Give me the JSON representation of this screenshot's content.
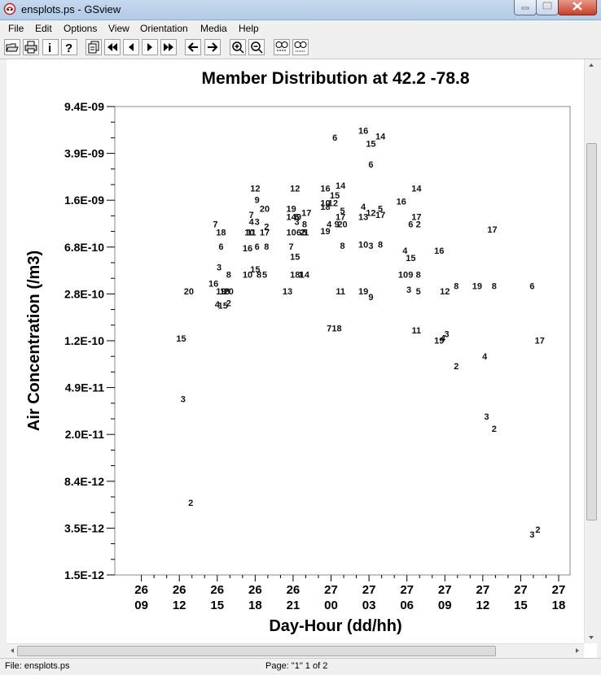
{
  "window": {
    "title": "ensplots.ps - GSview"
  },
  "menu": [
    "File",
    "Edit",
    "Options",
    "View",
    "Orientation",
    "Media",
    "Help"
  ],
  "toolbar_icons": [
    "open-icon",
    "print-icon",
    "info-icon",
    "help-icon",
    "page-select-icon",
    "first-page-icon",
    "prev-page-icon",
    "next-page-icon",
    "last-page-icon",
    "back-icon",
    "forward-icon",
    "zoom-in-icon",
    "zoom-out-icon",
    "magnify-small-icon",
    "magnify-large-icon"
  ],
  "status": {
    "file": "File: ensplots.ps",
    "page": "Page: \"1\"  1 of 2"
  },
  "chart_data": {
    "type": "scatter",
    "title": "Member Distribution at  42.2  -78.8",
    "xlabel": "Day-Hour (dd/hh)",
    "ylabel": "Air Concentration (/m3)",
    "yscale": "log",
    "ylim": [
      1.5e-12,
      9.4e-09
    ],
    "y_tick_labels": [
      "9.4E-09",
      "3.9E-09",
      "1.6E-09",
      "6.8E-10",
      "2.8E-10",
      "1.2E-10",
      "4.9E-11",
      "2.0E-11",
      "8.4E-12",
      "3.5E-12",
      "1.5E-12"
    ],
    "x_tick_labels": [
      [
        "26",
        "09"
      ],
      [
        "26",
        "12"
      ],
      [
        "26",
        "15"
      ],
      [
        "26",
        "18"
      ],
      [
        "26",
        "21"
      ],
      [
        "27",
        "00"
      ],
      [
        "27",
        "03"
      ],
      [
        "27",
        "06"
      ],
      [
        "27",
        "09"
      ],
      [
        "27",
        "12"
      ],
      [
        "27",
        "15"
      ],
      [
        "27",
        "18"
      ]
    ],
    "xlim": [
      -0.7,
      11.3
    ],
    "points": [
      {
        "x": 1.05,
        "y": 1.24e-10,
        "label": "15"
      },
      {
        "x": 1.1,
        "y": 4e-11,
        "label": "3"
      },
      {
        "x": 1.3,
        "y": 5.8e-12,
        "label": "2"
      },
      {
        "x": 1.25,
        "y": 3e-10,
        "label": "20"
      },
      {
        "x": 1.9,
        "y": 3.45e-10,
        "label": "16"
      },
      {
        "x": 2.1,
        "y": 3e-10,
        "label": "19"
      },
      {
        "x": 2.3,
        "y": 3e-10,
        "label": "20"
      },
      {
        "x": 2.2,
        "y": 3e-10,
        "label": "18"
      },
      {
        "x": 2.0,
        "y": 2.35e-10,
        "label": "4"
      },
      {
        "x": 2.15,
        "y": 2.3e-10,
        "label": "15"
      },
      {
        "x": 2.3,
        "y": 2.4e-10,
        "label": "2"
      },
      {
        "x": 2.05,
        "y": 4.7e-10,
        "label": "3"
      },
      {
        "x": 2.3,
        "y": 4.1e-10,
        "label": "8"
      },
      {
        "x": 2.1,
        "y": 6.9e-10,
        "label": "6"
      },
      {
        "x": 1.95,
        "y": 1.05e-09,
        "label": "7"
      },
      {
        "x": 2.1,
        "y": 9e-10,
        "label": "18"
      },
      {
        "x": 3.0,
        "y": 2.05e-09,
        "label": "12"
      },
      {
        "x": 3.05,
        "y": 1.65e-09,
        "label": "9"
      },
      {
        "x": 3.25,
        "y": 1.4e-09,
        "label": "20"
      },
      {
        "x": 2.9,
        "y": 1.25e-09,
        "label": "7"
      },
      {
        "x": 2.9,
        "y": 1.1e-09,
        "label": "4"
      },
      {
        "x": 3.05,
        "y": 1.1e-09,
        "label": "3"
      },
      {
        "x": 3.3,
        "y": 1e-09,
        "label": "2"
      },
      {
        "x": 2.85,
        "y": 9e-10,
        "label": "10"
      },
      {
        "x": 2.9,
        "y": 9e-10,
        "label": "11"
      },
      {
        "x": 3.25,
        "y": 9e-10,
        "label": "17"
      },
      {
        "x": 2.8,
        "y": 6.7e-10,
        "label": "16"
      },
      {
        "x": 3.05,
        "y": 6.9e-10,
        "label": "6"
      },
      {
        "x": 3.3,
        "y": 6.9e-10,
        "label": "8"
      },
      {
        "x": 2.8,
        "y": 4.1e-10,
        "label": "10"
      },
      {
        "x": 3.0,
        "y": 4.5e-10,
        "label": "15"
      },
      {
        "x": 3.1,
        "y": 4.1e-10,
        "label": "8"
      },
      {
        "x": 3.25,
        "y": 4.1e-10,
        "label": "5"
      },
      {
        "x": 4.05,
        "y": 2.05e-09,
        "label": "12"
      },
      {
        "x": 3.95,
        "y": 1.4e-09,
        "label": "19"
      },
      {
        "x": 3.95,
        "y": 1.2e-09,
        "label": "14"
      },
      {
        "x": 4.1,
        "y": 1.2e-09,
        "label": "6"
      },
      {
        "x": 4.15,
        "y": 1.2e-09,
        "label": "9"
      },
      {
        "x": 4.35,
        "y": 1.3e-09,
        "label": "17"
      },
      {
        "x": 4.1,
        "y": 1.1e-09,
        "label": "3"
      },
      {
        "x": 4.3,
        "y": 1.05e-09,
        "label": "8"
      },
      {
        "x": 3.95,
        "y": 9e-10,
        "label": "10"
      },
      {
        "x": 4.15,
        "y": 9e-10,
        "label": "6"
      },
      {
        "x": 4.25,
        "y": 9e-10,
        "label": "2"
      },
      {
        "x": 4.3,
        "y": 9e-10,
        "label": "5"
      },
      {
        "x": 4.35,
        "y": 9e-10,
        "label": "1"
      },
      {
        "x": 3.95,
        "y": 6.9e-10,
        "label": "7"
      },
      {
        "x": 4.05,
        "y": 5.7e-10,
        "label": "15"
      },
      {
        "x": 4.05,
        "y": 4.1e-10,
        "label": "18"
      },
      {
        "x": 4.3,
        "y": 4.1e-10,
        "label": "14"
      },
      {
        "x": 4.2,
        "y": 4.1e-10,
        "label": "1"
      },
      {
        "x": 3.85,
        "y": 3e-10,
        "label": "13"
      },
      {
        "x": 4.85,
        "y": 2.05e-09,
        "label": "16"
      },
      {
        "x": 5.25,
        "y": 2.15e-09,
        "label": "14"
      },
      {
        "x": 5.1,
        "y": 1.8e-09,
        "label": "15"
      },
      {
        "x": 4.85,
        "y": 1.55e-09,
        "label": "10"
      },
      {
        "x": 5.05,
        "y": 1.55e-09,
        "label": "12"
      },
      {
        "x": 4.85,
        "y": 1.45e-09,
        "label": "18"
      },
      {
        "x": 5.3,
        "y": 1.35e-09,
        "label": "5"
      },
      {
        "x": 5.25,
        "y": 1.2e-09,
        "label": "17"
      },
      {
        "x": 4.85,
        "y": 9.2e-10,
        "label": "19"
      },
      {
        "x": 4.95,
        "y": 1.05e-09,
        "label": "4"
      },
      {
        "x": 5.15,
        "y": 1.05e-09,
        "label": "9"
      },
      {
        "x": 5.3,
        "y": 1.05e-09,
        "label": "20"
      },
      {
        "x": 5.3,
        "y": 7e-10,
        "label": "8"
      },
      {
        "x": 5.1,
        "y": 5.3e-09,
        "label": "6"
      },
      {
        "x": 5.25,
        "y": 3e-10,
        "label": "11"
      },
      {
        "x": 4.95,
        "y": 1.5e-10,
        "label": "7"
      },
      {
        "x": 5.15,
        "y": 1.5e-10,
        "label": "18"
      },
      {
        "x": 5.85,
        "y": 6e-09,
        "label": "16"
      },
      {
        "x": 6.05,
        "y": 4.7e-09,
        "label": "15"
      },
      {
        "x": 6.3,
        "y": 5.4e-09,
        "label": "14"
      },
      {
        "x": 6.05,
        "y": 3.2e-09,
        "label": "6"
      },
      {
        "x": 5.85,
        "y": 1.45e-09,
        "label": "4"
      },
      {
        "x": 6.05,
        "y": 1.3e-09,
        "label": "12"
      },
      {
        "x": 6.3,
        "y": 1.4e-09,
        "label": "5"
      },
      {
        "x": 6.3,
        "y": 1.25e-09,
        "label": "17"
      },
      {
        "x": 5.85,
        "y": 1.2e-09,
        "label": "13"
      },
      {
        "x": 5.85,
        "y": 7.2e-10,
        "label": "10"
      },
      {
        "x": 6.05,
        "y": 7e-10,
        "label": "3"
      },
      {
        "x": 6.3,
        "y": 7.2e-10,
        "label": "8"
      },
      {
        "x": 5.85,
        "y": 3e-10,
        "label": "19"
      },
      {
        "x": 6.05,
        "y": 2.7e-10,
        "label": "9"
      },
      {
        "x": 6.85,
        "y": 1.6e-09,
        "label": "16"
      },
      {
        "x": 7.25,
        "y": 2.05e-09,
        "label": "14"
      },
      {
        "x": 7.25,
        "y": 1.2e-09,
        "label": "17"
      },
      {
        "x": 7.1,
        "y": 1.05e-09,
        "label": "6"
      },
      {
        "x": 7.3,
        "y": 1.05e-09,
        "label": "2"
      },
      {
        "x": 6.95,
        "y": 6.4e-10,
        "label": "4"
      },
      {
        "x": 7.1,
        "y": 5.6e-10,
        "label": "15"
      },
      {
        "x": 6.9,
        "y": 4.1e-10,
        "label": "10"
      },
      {
        "x": 7.1,
        "y": 4.1e-10,
        "label": "9"
      },
      {
        "x": 7.3,
        "y": 4.1e-10,
        "label": "8"
      },
      {
        "x": 7.05,
        "y": 3.1e-10,
        "label": "3"
      },
      {
        "x": 7.3,
        "y": 3e-10,
        "label": "5"
      },
      {
        "x": 7.25,
        "y": 1.45e-10,
        "label": "11"
      },
      {
        "x": 7.85,
        "y": 6.4e-10,
        "label": "16"
      },
      {
        "x": 8.0,
        "y": 3e-10,
        "label": "12"
      },
      {
        "x": 8.3,
        "y": 3.3e-10,
        "label": "8"
      },
      {
        "x": 8.85,
        "y": 3.3e-10,
        "label": "19"
      },
      {
        "x": 9.3,
        "y": 3.3e-10,
        "label": "8"
      },
      {
        "x": 10.3,
        "y": 3.3e-10,
        "label": "6"
      },
      {
        "x": 7.85,
        "y": 1.2e-10,
        "label": "19"
      },
      {
        "x": 7.95,
        "y": 1.25e-10,
        "label": "4"
      },
      {
        "x": 8.05,
        "y": 1.35e-10,
        "label": "3"
      },
      {
        "x": 8.3,
        "y": 7.4e-11,
        "label": "2"
      },
      {
        "x": 9.25,
        "y": 9.5e-10,
        "label": "17"
      },
      {
        "x": 10.5,
        "y": 1.2e-10,
        "label": "17"
      },
      {
        "x": 9.05,
        "y": 8.9e-11,
        "label": "4"
      },
      {
        "x": 9.1,
        "y": 2.9e-11,
        "label": "3"
      },
      {
        "x": 9.3,
        "y": 2.3e-11,
        "label": "2"
      },
      {
        "x": 10.3,
        "y": 3.2e-12,
        "label": "3"
      },
      {
        "x": 10.45,
        "y": 3.5e-12,
        "label": "2"
      }
    ]
  }
}
